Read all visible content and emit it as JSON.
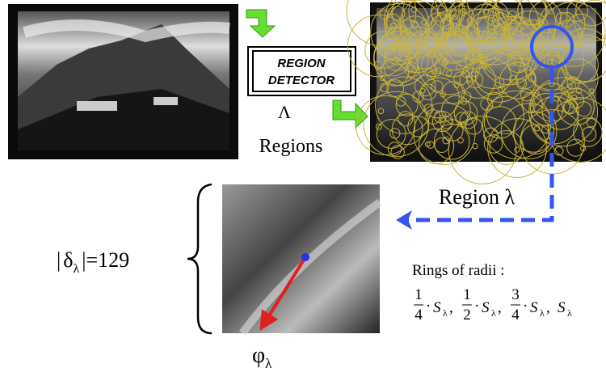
{
  "detector": {
    "line1": "REGION",
    "line2": "DETECTOR"
  },
  "regions_symbol": "Λ",
  "regions_label": "Regions",
  "region_label": "Region λ",
  "descriptor_size": {
    "open": "|",
    "symbol": "δ",
    "subscript": "λ",
    "close": "|=",
    "value": 129
  },
  "orientation": {
    "symbol": "φ",
    "subscript": "λ"
  },
  "rings": {
    "title": "Rings of radii :",
    "operator": "·",
    "separator": ",",
    "scale": "S",
    "scale_subscript": "λ",
    "fractions": [
      {
        "num": "1",
        "den": "4"
      },
      {
        "num": "1",
        "den": "2"
      },
      {
        "num": "3",
        "den": "4"
      }
    ]
  }
}
